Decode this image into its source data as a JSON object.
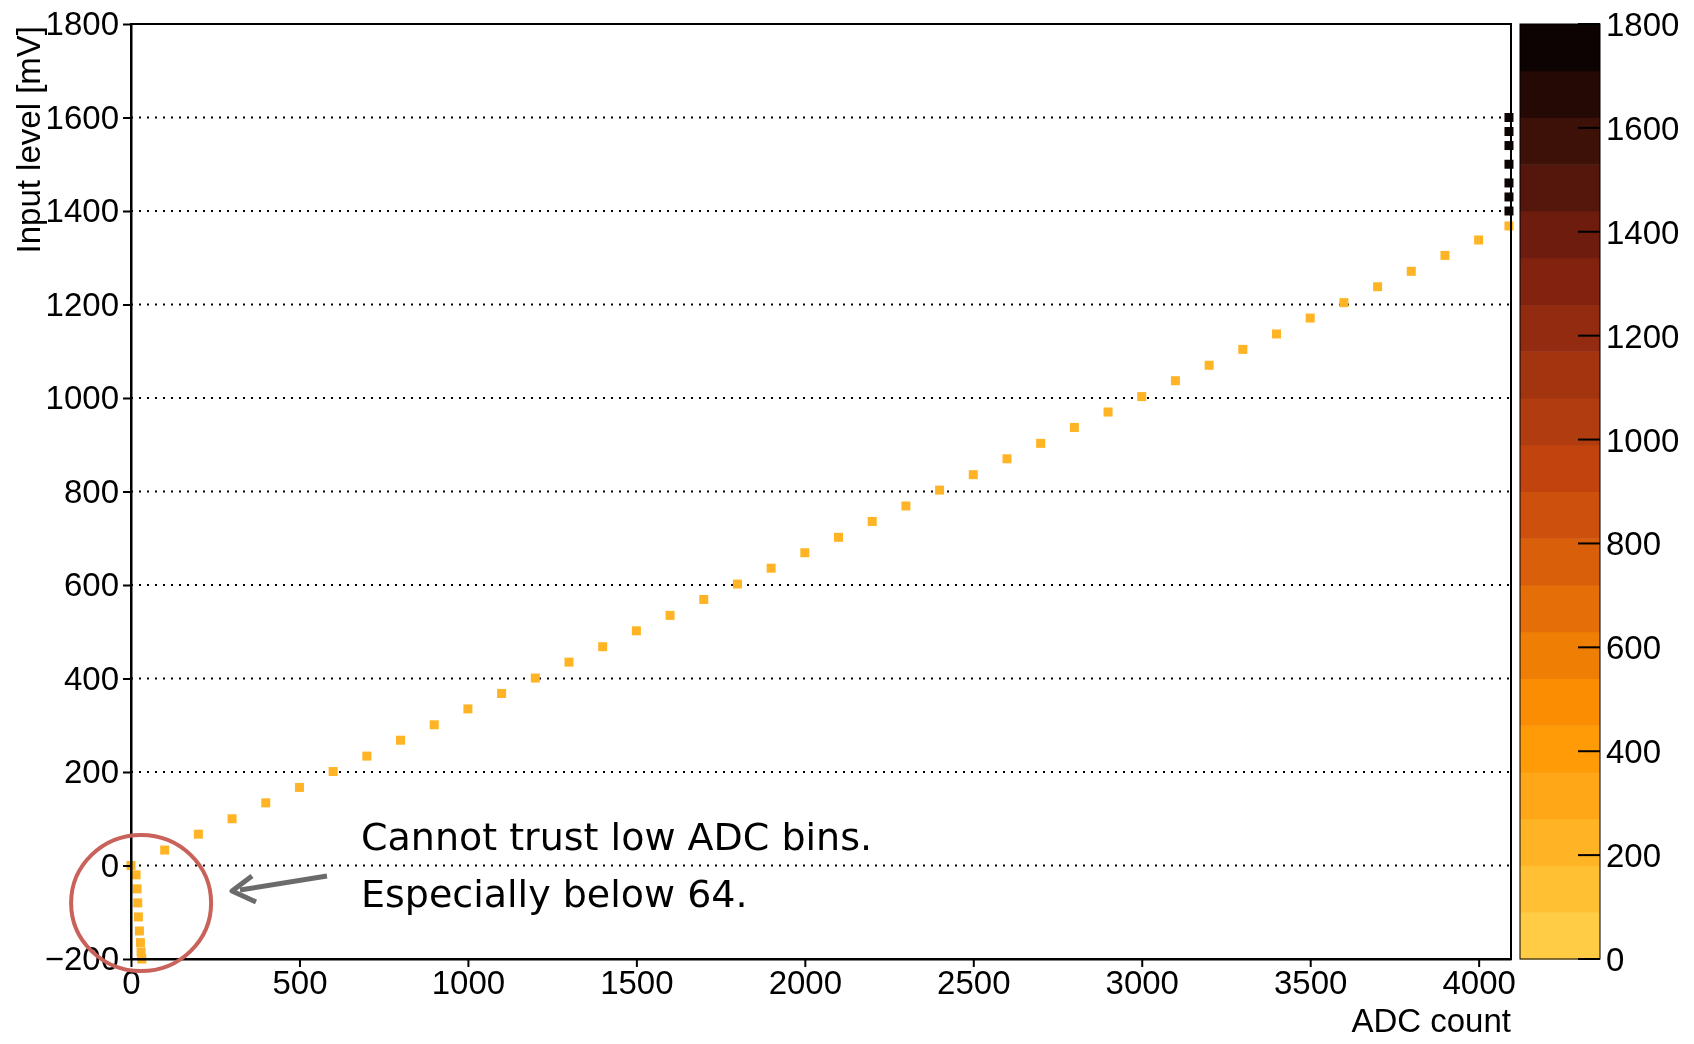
{
  "chart_data": {
    "type": "scatter",
    "xlabel": "ADC count",
    "ylabel": "Input level [mV]",
    "xlim": [
      0,
      4096
    ],
    "ylim": [
      -200,
      1800
    ],
    "xticks": [
      0,
      500,
      1000,
      1500,
      2000,
      2500,
      3000,
      3500,
      4000
    ],
    "yticks": [
      -200,
      0,
      200,
      400,
      600,
      800,
      1000,
      1200,
      1400,
      1600,
      1800
    ],
    "grid": "y",
    "marker": "square",
    "clim": [
      0,
      1800
    ],
    "cticks": [
      0,
      200,
      400,
      600,
      800,
      1000,
      1200,
      1400,
      1600,
      1800
    ],
    "series": [
      {
        "x": [
          0,
          100,
          200,
          300,
          400,
          500,
          600,
          700,
          800,
          900,
          1000,
          1100,
          1200,
          1300,
          1400,
          1500,
          1600,
          1700,
          1800,
          1900,
          2000,
          2100,
          2200,
          2300,
          2400,
          2500,
          2600,
          2700,
          2800,
          2900,
          3000,
          3100,
          3200,
          3300,
          3400,
          3500,
          3600,
          3700,
          3800,
          3900,
          4000,
          4090
        ],
        "values": [
          0,
          33,
          67,
          100,
          134,
          167,
          201,
          234,
          268,
          301,
          335,
          368,
          401,
          435,
          468,
          502,
          535,
          569,
          602,
          636,
          669,
          702,
          736,
          769,
          803,
          836,
          870,
          903,
          937,
          970,
          1003,
          1037,
          1070,
          1104,
          1137,
          1171,
          1204,
          1238,
          1271,
          1305,
          1338,
          1368
        ],
        "cvalues": [
          200,
          200,
          200,
          200,
          200,
          200,
          200,
          200,
          200,
          200,
          200,
          200,
          200,
          200,
          200,
          200,
          200,
          200,
          200,
          200,
          200,
          200,
          200,
          200,
          200,
          200,
          200,
          200,
          200,
          200,
          200,
          200,
          200,
          200,
          200,
          200,
          200,
          200,
          200,
          200,
          200,
          200
        ]
      },
      {
        "x": [
          15,
          18,
          20,
          22,
          25,
          28,
          30,
          32
        ],
        "values": [
          -20,
          -50,
          -80,
          -110,
          -140,
          -165,
          -185,
          -200
        ],
        "cvalues": [
          200,
          200,
          200,
          200,
          200,
          200,
          200,
          200
        ]
      },
      {
        "x": [
          4090,
          4090,
          4090,
          4090,
          4090,
          4090,
          4090
        ],
        "values": [
          1400,
          1430,
          1460,
          1500,
          1540,
          1570,
          1600
        ],
        "cvalues": [
          1800,
          1800,
          1800,
          1800,
          1800,
          1800,
          1800
        ]
      }
    ],
    "annotations": [
      "Cannot trust low ADC bins.",
      "Especially below 64."
    ]
  }
}
